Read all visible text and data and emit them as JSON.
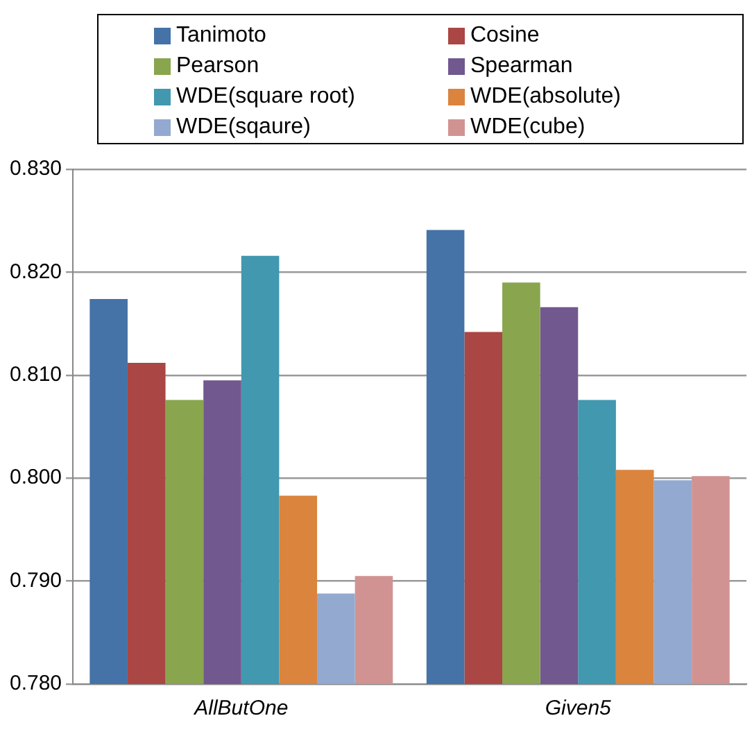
{
  "chart_data": {
    "type": "bar",
    "categories": [
      "AllButOne",
      "Given5"
    ],
    "series": [
      {
        "name": "Tanimoto",
        "color": "#4572a7",
        "values": [
          0.8174,
          0.8241
        ]
      },
      {
        "name": "Cosine",
        "color": "#aa4643",
        "values": [
          0.8112,
          0.8142
        ]
      },
      {
        "name": "Pearson",
        "color": "#89a54e",
        "values": [
          0.8076,
          0.819
        ]
      },
      {
        "name": "Spearman",
        "color": "#71588f",
        "values": [
          0.8095,
          0.8166
        ]
      },
      {
        "name": "WDE(square root)",
        "color": "#4198af",
        "values": [
          0.8216,
          0.8076
        ]
      },
      {
        "name": "WDE(absolute)",
        "color": "#db843d",
        "values": [
          0.7983,
          0.8008
        ]
      },
      {
        "name": "WDE(sqaure)",
        "color": "#93a9cf",
        "values": [
          0.7888,
          0.7998
        ]
      },
      {
        "name": "WDE(cube)",
        "color": "#d19392",
        "values": [
          0.7905,
          0.8002
        ]
      }
    ],
    "ylim": [
      0.78,
      0.83
    ],
    "yticks": [
      {
        "value": 0.78,
        "label": "0.780"
      },
      {
        "value": 0.79,
        "label": "0.790"
      },
      {
        "value": 0.8,
        "label": "0.800"
      },
      {
        "value": 0.81,
        "label": "0.810"
      },
      {
        "value": 0.82,
        "label": "0.820"
      },
      {
        "value": 0.83,
        "label": "0.830"
      }
    ],
    "grid": "y",
    "legend": "top"
  }
}
